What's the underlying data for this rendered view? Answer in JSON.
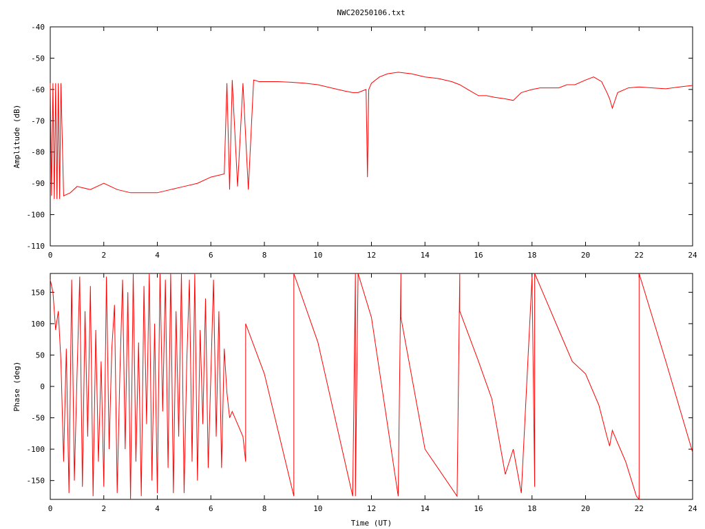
{
  "title": "NWC20250106.txt",
  "colors": {
    "series": "#ff0000",
    "axes": "#000000",
    "background": "#ffffff"
  },
  "chart_data": [
    {
      "type": "line",
      "title": "NWC20250106.txt",
      "xlabel": "",
      "ylabel": "Amplitude (dB)",
      "xlim": [
        0,
        24
      ],
      "ylim": [
        -110,
        -40
      ],
      "x_ticks": [
        "0",
        "2",
        "4",
        "6",
        "8",
        "10",
        "12",
        "14",
        "16",
        "18",
        "20",
        "22",
        "24"
      ],
      "y_ticks": [
        "-40",
        "-50",
        "-60",
        "-70",
        "-80",
        "-90",
        "-100",
        "-110"
      ],
      "grid": false,
      "legend": "none",
      "series": [
        {
          "x": [
            0,
            0.05,
            0.1,
            0.15,
            0.2,
            0.25,
            0.3,
            0.35,
            0.4,
            0.5,
            0.75,
            1,
            1.5,
            2,
            2.5,
            3,
            3.5,
            4,
            4.5,
            5,
            5.5,
            6,
            6.5,
            6.6,
            6.7,
            6.8,
            7,
            7.2,
            7.4,
            7.6,
            7.8,
            8,
            8.5,
            9,
            9.5,
            10,
            10.5,
            11,
            11.3,
            11.5,
            11.8,
            11.85,
            11.9,
            12,
            12.3,
            12.6,
            13,
            13.5,
            14,
            14.5,
            15,
            15.3,
            15.6,
            16,
            16.3,
            16.6,
            17,
            17.3,
            17.6,
            18,
            18.3,
            18.6,
            19,
            19.3,
            19.6,
            20,
            20.3,
            20.6,
            20.8,
            20.9,
            21,
            21.2,
            21.6,
            22,
            22.5,
            23,
            23.5,
            24
          ],
          "y": [
            -58,
            -94,
            -58,
            -95,
            -58,
            -95,
            -58,
            -95,
            -58,
            -94,
            -93,
            -91,
            -92,
            -90,
            -92,
            -93,
            -93,
            -93,
            -92,
            -91,
            -90,
            -88,
            -87,
            -58,
            -92,
            -57,
            -91,
            -58,
            -92,
            -57,
            -57.5,
            -57.5,
            -57.5,
            -57.7,
            -58,
            -58.5,
            -59.5,
            -60.5,
            -61,
            -61,
            -60,
            -88,
            -60,
            -58,
            -56,
            -55,
            -54.5,
            -55,
            -56,
            -56.5,
            -57.5,
            -58.5,
            -60,
            -62,
            -62,
            -62.5,
            -63,
            -63.5,
            -61,
            -60,
            -59.5,
            -59.5,
            -59.5,
            -58.5,
            -58.5,
            -57,
            -56,
            -57.5,
            -61,
            -63,
            -66,
            -61,
            -59.5,
            -59.2,
            -59.5,
            -59.8,
            -59.2,
            -58.7
          ]
        }
      ]
    },
    {
      "type": "line",
      "title": "",
      "xlabel": "Time (UT)",
      "ylabel": "Phase (deg)",
      "xlim": [
        0,
        24
      ],
      "ylim": [
        -180,
        180
      ],
      "x_ticks": [
        "0",
        "2",
        "4",
        "6",
        "8",
        "10",
        "12",
        "14",
        "16",
        "18",
        "20",
        "22",
        "24"
      ],
      "y_ticks": [
        "150",
        "100",
        "50",
        "0",
        "-50",
        "-100",
        "-150"
      ],
      "grid": false,
      "legend": "none",
      "series": [
        {
          "x": [
            0,
            0.1,
            0.2,
            0.3,
            0.4,
            0.5,
            0.6,
            0.7,
            0.8,
            0.9,
            1,
            1.1,
            1.2,
            1.3,
            1.4,
            1.5,
            1.6,
            1.7,
            1.8,
            1.9,
            2,
            2.1,
            2.2,
            2.3,
            2.4,
            2.5,
            2.6,
            2.7,
            2.8,
            2.9,
            3,
            3.1,
            3.2,
            3.3,
            3.4,
            3.5,
            3.6,
            3.7,
            3.8,
            3.9,
            4,
            4.1,
            4.2,
            4.3,
            4.4,
            4.5,
            4.6,
            4.7,
            4.8,
            4.9,
            5,
            5.1,
            5.2,
            5.3,
            5.4,
            5.5,
            5.6,
            5.7,
            5.8,
            5.9,
            6,
            6.1,
            6.2,
            6.3,
            6.4,
            6.5,
            6.6,
            6.7,
            6.8,
            7,
            7.2,
            7.3,
            7.3,
            8,
            9.1,
            9.1,
            10,
            11.3,
            11.4,
            11.4,
            11.5,
            12,
            13,
            13.1,
            13.1,
            14,
            15.2,
            15.3,
            15.3,
            16,
            16.5,
            17,
            17.3,
            17.6,
            18,
            18.1,
            18.1,
            18.5,
            19,
            19.5,
            20,
            20.5,
            20.8,
            20.9,
            21,
            21.2,
            21.5,
            21.9,
            22,
            22,
            23,
            24
          ],
          "y": [
            170,
            150,
            90,
            120,
            40,
            -120,
            60,
            -170,
            170,
            -150,
            20,
            175,
            -160,
            120,
            -80,
            160,
            -175,
            90,
            -120,
            40,
            -160,
            175,
            -100,
            60,
            130,
            -170,
            20,
            170,
            -100,
            150,
            -180,
            180,
            -120,
            70,
            -175,
            160,
            -60,
            180,
            -150,
            100,
            -170,
            180,
            -40,
            170,
            -130,
            180,
            -170,
            120,
            -80,
            180,
            -170,
            40,
            170,
            -120,
            180,
            -150,
            90,
            -60,
            140,
            -130,
            20,
            170,
            -80,
            120,
            -130,
            60,
            -10,
            -50,
            -40,
            -60,
            -80,
            -120,
            100,
            20,
            -175,
            180,
            70,
            -175,
            180,
            -175,
            180,
            110,
            -175,
            180,
            110,
            -100,
            -175,
            180,
            120,
            40,
            -20,
            -140,
            -100,
            -170,
            175,
            -160,
            180,
            140,
            90,
            40,
            20,
            -30,
            -80,
            -95,
            -70,
            -90,
            -120,
            -175,
            -180,
            180,
            40,
            -105
          ]
        }
      ]
    }
  ]
}
